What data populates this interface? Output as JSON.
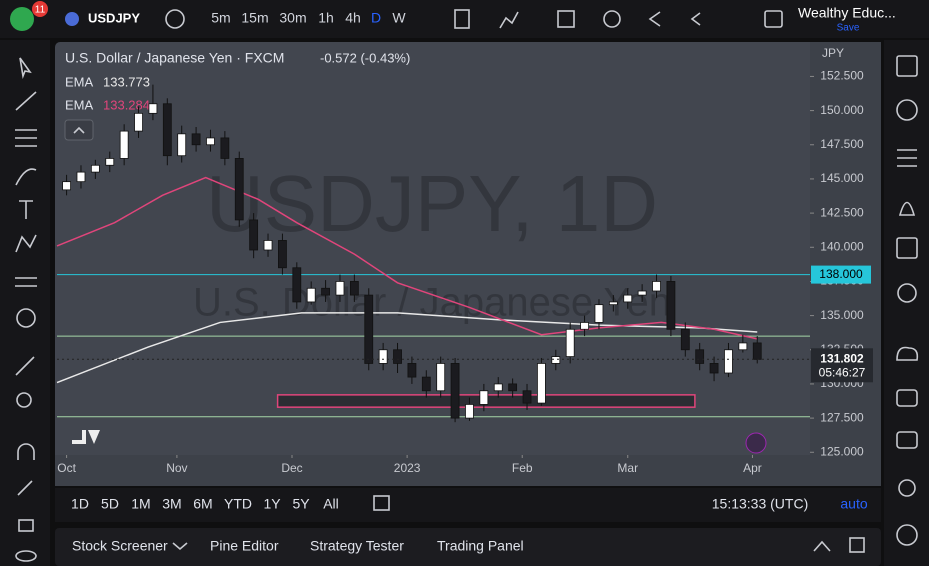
{
  "toolbar": {
    "badge": "11",
    "symbol": "USDJPY",
    "intervals": [
      "5m",
      "15m",
      "30m",
      "1h",
      "4h",
      "D",
      "W"
    ],
    "account": "Wealthy Educ...",
    "save": "Save"
  },
  "legend": {
    "title": "U.S. Dollar / Japanese Yen · FXCM",
    "change": "-0.572 (-0.43%)"
  },
  "watermark": {
    "line1": "USDJPY, 1D",
    "line2": "U.S. Dollar / Japanese Yen"
  },
  "chart_data": {
    "type": "candlestick",
    "currency": "JPY",
    "up_color": "#ffffff",
    "down_color": "#1b1b1f",
    "x": [
      0,
      3,
      6,
      9,
      12,
      15,
      18,
      21,
      24,
      27,
      30,
      33,
      36,
      39,
      42,
      45,
      48,
      51,
      54,
      57,
      60,
      63,
      66,
      69,
      72,
      75,
      78,
      81,
      84,
      87,
      90,
      93,
      96,
      99,
      102,
      105,
      108,
      111,
      114,
      117,
      120,
      123,
      126,
      129,
      132,
      135,
      138,
      141,
      144
    ],
    "open": [
      144.2,
      144.8,
      145.5,
      146.0,
      146.5,
      148.5,
      149.8,
      150.5,
      146.7,
      148.3,
      147.5,
      148.0,
      146.5,
      142.0,
      139.8,
      140.5,
      138.5,
      136.0,
      137.0,
      136.5,
      137.5,
      136.5,
      131.5,
      132.5,
      131.5,
      130.5,
      129.5,
      131.5,
      127.5,
      128.5,
      129.5,
      130.0,
      129.5,
      128.6,
      131.5,
      132.0,
      134.0,
      134.5,
      135.8,
      136.0,
      136.5,
      136.8,
      137.5,
      134.0,
      132.5,
      131.5,
      130.8,
      132.5,
      133.0
    ],
    "high": [
      145.3,
      146.0,
      146.4,
      147.0,
      149.0,
      150.3,
      151.9,
      150.9,
      148.9,
      148.8,
      148.6,
      148.5,
      147.0,
      142.5,
      141.0,
      141.0,
      138.9,
      137.5,
      137.6,
      138.0,
      138.0,
      137.0,
      133.0,
      133.0,
      132.0,
      131.0,
      132.0,
      131.9,
      129.0,
      130.0,
      130.5,
      130.4,
      130.0,
      131.9,
      132.5,
      134.5,
      135.0,
      136.2,
      136.5,
      137.0,
      137.3,
      138.0,
      137.9,
      134.5,
      133.0,
      132.0,
      133.0,
      133.6,
      133.5
    ],
    "low": [
      143.8,
      144.3,
      145.0,
      145.5,
      146.0,
      148.0,
      149.3,
      146.0,
      146.2,
      147.0,
      147.0,
      146.0,
      141.5,
      139.2,
      139.3,
      138.0,
      135.5,
      135.8,
      136.0,
      136.0,
      136.0,
      131.0,
      131.0,
      130.8,
      130.0,
      129.0,
      129.0,
      127.2,
      127.3,
      128.0,
      129.0,
      129.0,
      128.1,
      128.4,
      131.0,
      131.5,
      133.5,
      134.0,
      135.3,
      135.5,
      136.0,
      136.3,
      133.5,
      132.0,
      131.0,
      130.2,
      130.5,
      132.3,
      131.5
    ],
    "close": [
      144.8,
      145.5,
      146.0,
      146.5,
      148.5,
      149.8,
      150.5,
      146.7,
      148.3,
      147.5,
      148.0,
      146.5,
      142.0,
      139.8,
      140.5,
      138.5,
      136.0,
      137.0,
      136.5,
      137.5,
      136.5,
      131.5,
      132.5,
      131.5,
      130.5,
      129.5,
      131.5,
      127.5,
      128.5,
      129.5,
      130.0,
      129.5,
      128.6,
      131.5,
      132.0,
      134.0,
      134.5,
      135.8,
      136.0,
      136.5,
      136.8,
      137.5,
      134.0,
      132.5,
      131.5,
      130.8,
      132.5,
      133.0,
      131.8
    ],
    "ema": [
      {
        "name": "EMA",
        "color": "#e8e8e8",
        "last": 133.773,
        "x": [
          -2,
          17,
          32,
          49,
          69,
          90,
          111,
          132,
          144
        ],
        "values": [
          130.1,
          132.7,
          134.5,
          135.2,
          135.2,
          134.7,
          134.3,
          134.1,
          133.8
        ]
      },
      {
        "name": "EMA",
        "color": "#e0457b",
        "last": 133.284,
        "x": [
          -2,
          10,
          20,
          29,
          40,
          48,
          60,
          69,
          84,
          99,
          111,
          124,
          135,
          144
        ],
        "values": [
          140.1,
          141.8,
          143.8,
          145.1,
          143.5,
          141.8,
          139.5,
          137.4,
          135.6,
          133.6,
          134.1,
          134.5,
          134.0,
          133.3
        ]
      }
    ],
    "hlines": [
      {
        "value": 138,
        "label": "138.000",
        "color": "#26c6da"
      },
      {
        "value": 133.5,
        "color": "#a5d6a7"
      },
      {
        "value": 127.6,
        "color": "#a5d6a7"
      }
    ],
    "zone": {
      "xlim": [
        44,
        131
      ],
      "ylim": [
        128.3,
        129.2
      ],
      "color": "#e0457b"
    },
    "last_price": 131.802,
    "countdown": "05:46:27",
    "ylim": [
      124.8,
      154.8
    ],
    "yticks": [
      {
        "value": 125,
        "label": "125.000"
      },
      {
        "value": 127.5,
        "label": "127.500"
      },
      {
        "value": 130,
        "label": "130.000"
      },
      {
        "value": 132.5,
        "label": "132.500"
      },
      {
        "value": 135,
        "label": "135.000"
      },
      {
        "value": 137.5,
        "label": "137.500"
      },
      {
        "value": 140,
        "label": "140.000"
      },
      {
        "value": 142.5,
        "label": "142.500"
      },
      {
        "value": 145,
        "label": "145.000"
      },
      {
        "value": 147.5,
        "label": "147.500"
      },
      {
        "value": 150,
        "label": "150.000"
      },
      {
        "value": 152.5,
        "label": "152.500"
      }
    ],
    "xlim": [
      -2,
      155
    ],
    "xticks": [
      {
        "value": 0,
        "label": "Oct"
      },
      {
        "value": 23,
        "label": "Nov"
      },
      {
        "value": 47,
        "label": "Dec"
      },
      {
        "value": 71,
        "label": "2023"
      },
      {
        "value": 95,
        "label": "Feb"
      },
      {
        "value": 117,
        "label": "Mar"
      },
      {
        "value": 143,
        "label": "Apr"
      }
    ],
    "grid": false
  },
  "range_bar": {
    "ranges": [
      "1D",
      "5D",
      "1M",
      "3M",
      "6M",
      "YTD",
      "1Y",
      "5Y",
      "All"
    ],
    "clock": "15:13:33 (UTC)",
    "scale": "auto"
  },
  "bottom_panel": {
    "tabs": [
      "Stock Screener",
      "Pine Editor",
      "Strategy Tester",
      "Trading Panel"
    ]
  }
}
